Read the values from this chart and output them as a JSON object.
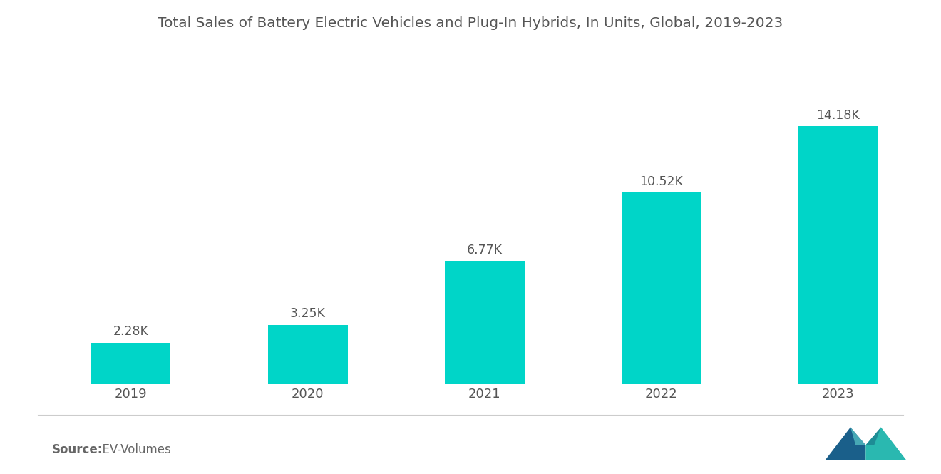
{
  "title": "Total Sales of Battery Electric Vehicles and Plug-In Hybrids, In Units, Global, 2019-2023",
  "categories": [
    "2019",
    "2020",
    "2021",
    "2022",
    "2023"
  ],
  "values": [
    2.28,
    3.25,
    6.77,
    10.52,
    14.18
  ],
  "labels": [
    "2.28K",
    "3.25K",
    "6.77K",
    "10.52K",
    "14.18K"
  ],
  "bar_color": "#00D5C8",
  "background_color": "#ffffff",
  "title_color": "#555555",
  "label_color": "#555555",
  "tick_color": "#555555",
  "source_bold": "Source:",
  "source_normal": "  EV-Volumes",
  "title_fontsize": 14.5,
  "label_fontsize": 12.5,
  "tick_fontsize": 13,
  "source_fontsize": 12,
  "bar_width": 0.45,
  "ylim": [
    0,
    18
  ],
  "logo_color_left": "#1a5f8a",
  "logo_color_right": "#2ab8b0",
  "logo_color_mid": "#5bc8c8"
}
